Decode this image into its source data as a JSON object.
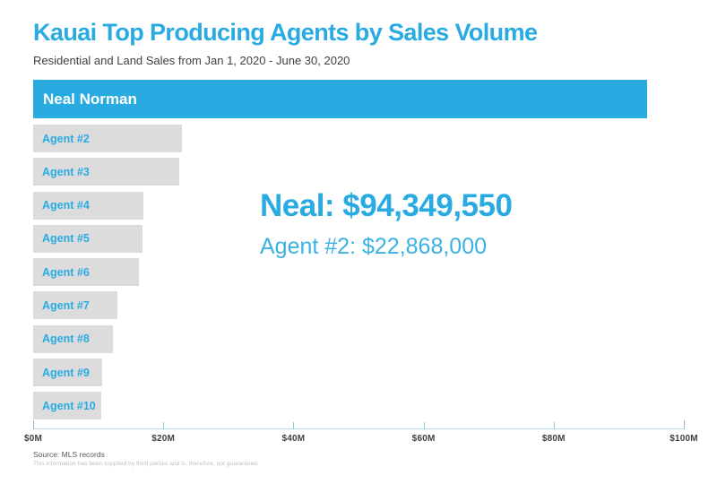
{
  "header": {
    "title": "Kauai Top Producing Agents by Sales Volume",
    "subtitle": "Residential and Land Sales from Jan 1, 2020 - June 30, 2020"
  },
  "annotation": {
    "primary": "Neal: $94,349,550",
    "secondary": "Agent #2: $22,868,000"
  },
  "footer": {
    "source": "Source: MLS records",
    "disclaimer": "This information has been supplied by third parties and is, therefore, not guaranteed."
  },
  "colors": {
    "accent": "#29abe2",
    "lead_bar": "#29abe2",
    "other_bar": "#dcdcdc",
    "lead_label": "#ffffff",
    "other_label": "#29abe2",
    "subtitle_text": "#414042",
    "axis_line": "#b9d9eb",
    "tick_label": "#414042"
  },
  "chart_data": {
    "type": "bar",
    "orientation": "horizontal",
    "title": "Kauai Top Producing Agents by Sales Volume",
    "subtitle": "Residential and Land Sales from Jan 1, 2020 - June 30, 2020",
    "categories": [
      "Neal Norman",
      "Agent #2",
      "Agent #3",
      "Agent #4",
      "Agent #5",
      "Agent #6",
      "Agent #7",
      "Agent #8",
      "Agent #9",
      "Agent #10"
    ],
    "values": [
      94349550,
      22868000,
      22500000,
      16900000,
      16800000,
      16200000,
      13000000,
      12200000,
      10600000,
      10500000
    ],
    "xlabel": "",
    "ylabel": "",
    "xlim": [
      0,
      100000000
    ],
    "x_tick_values": [
      0,
      20000000,
      40000000,
      60000000,
      80000000,
      100000000
    ],
    "x_tick_labels": [
      "$0M",
      "$20M",
      "$40M",
      "$60M",
      "$80M",
      "$100M"
    ],
    "grid": false,
    "legend": false
  }
}
